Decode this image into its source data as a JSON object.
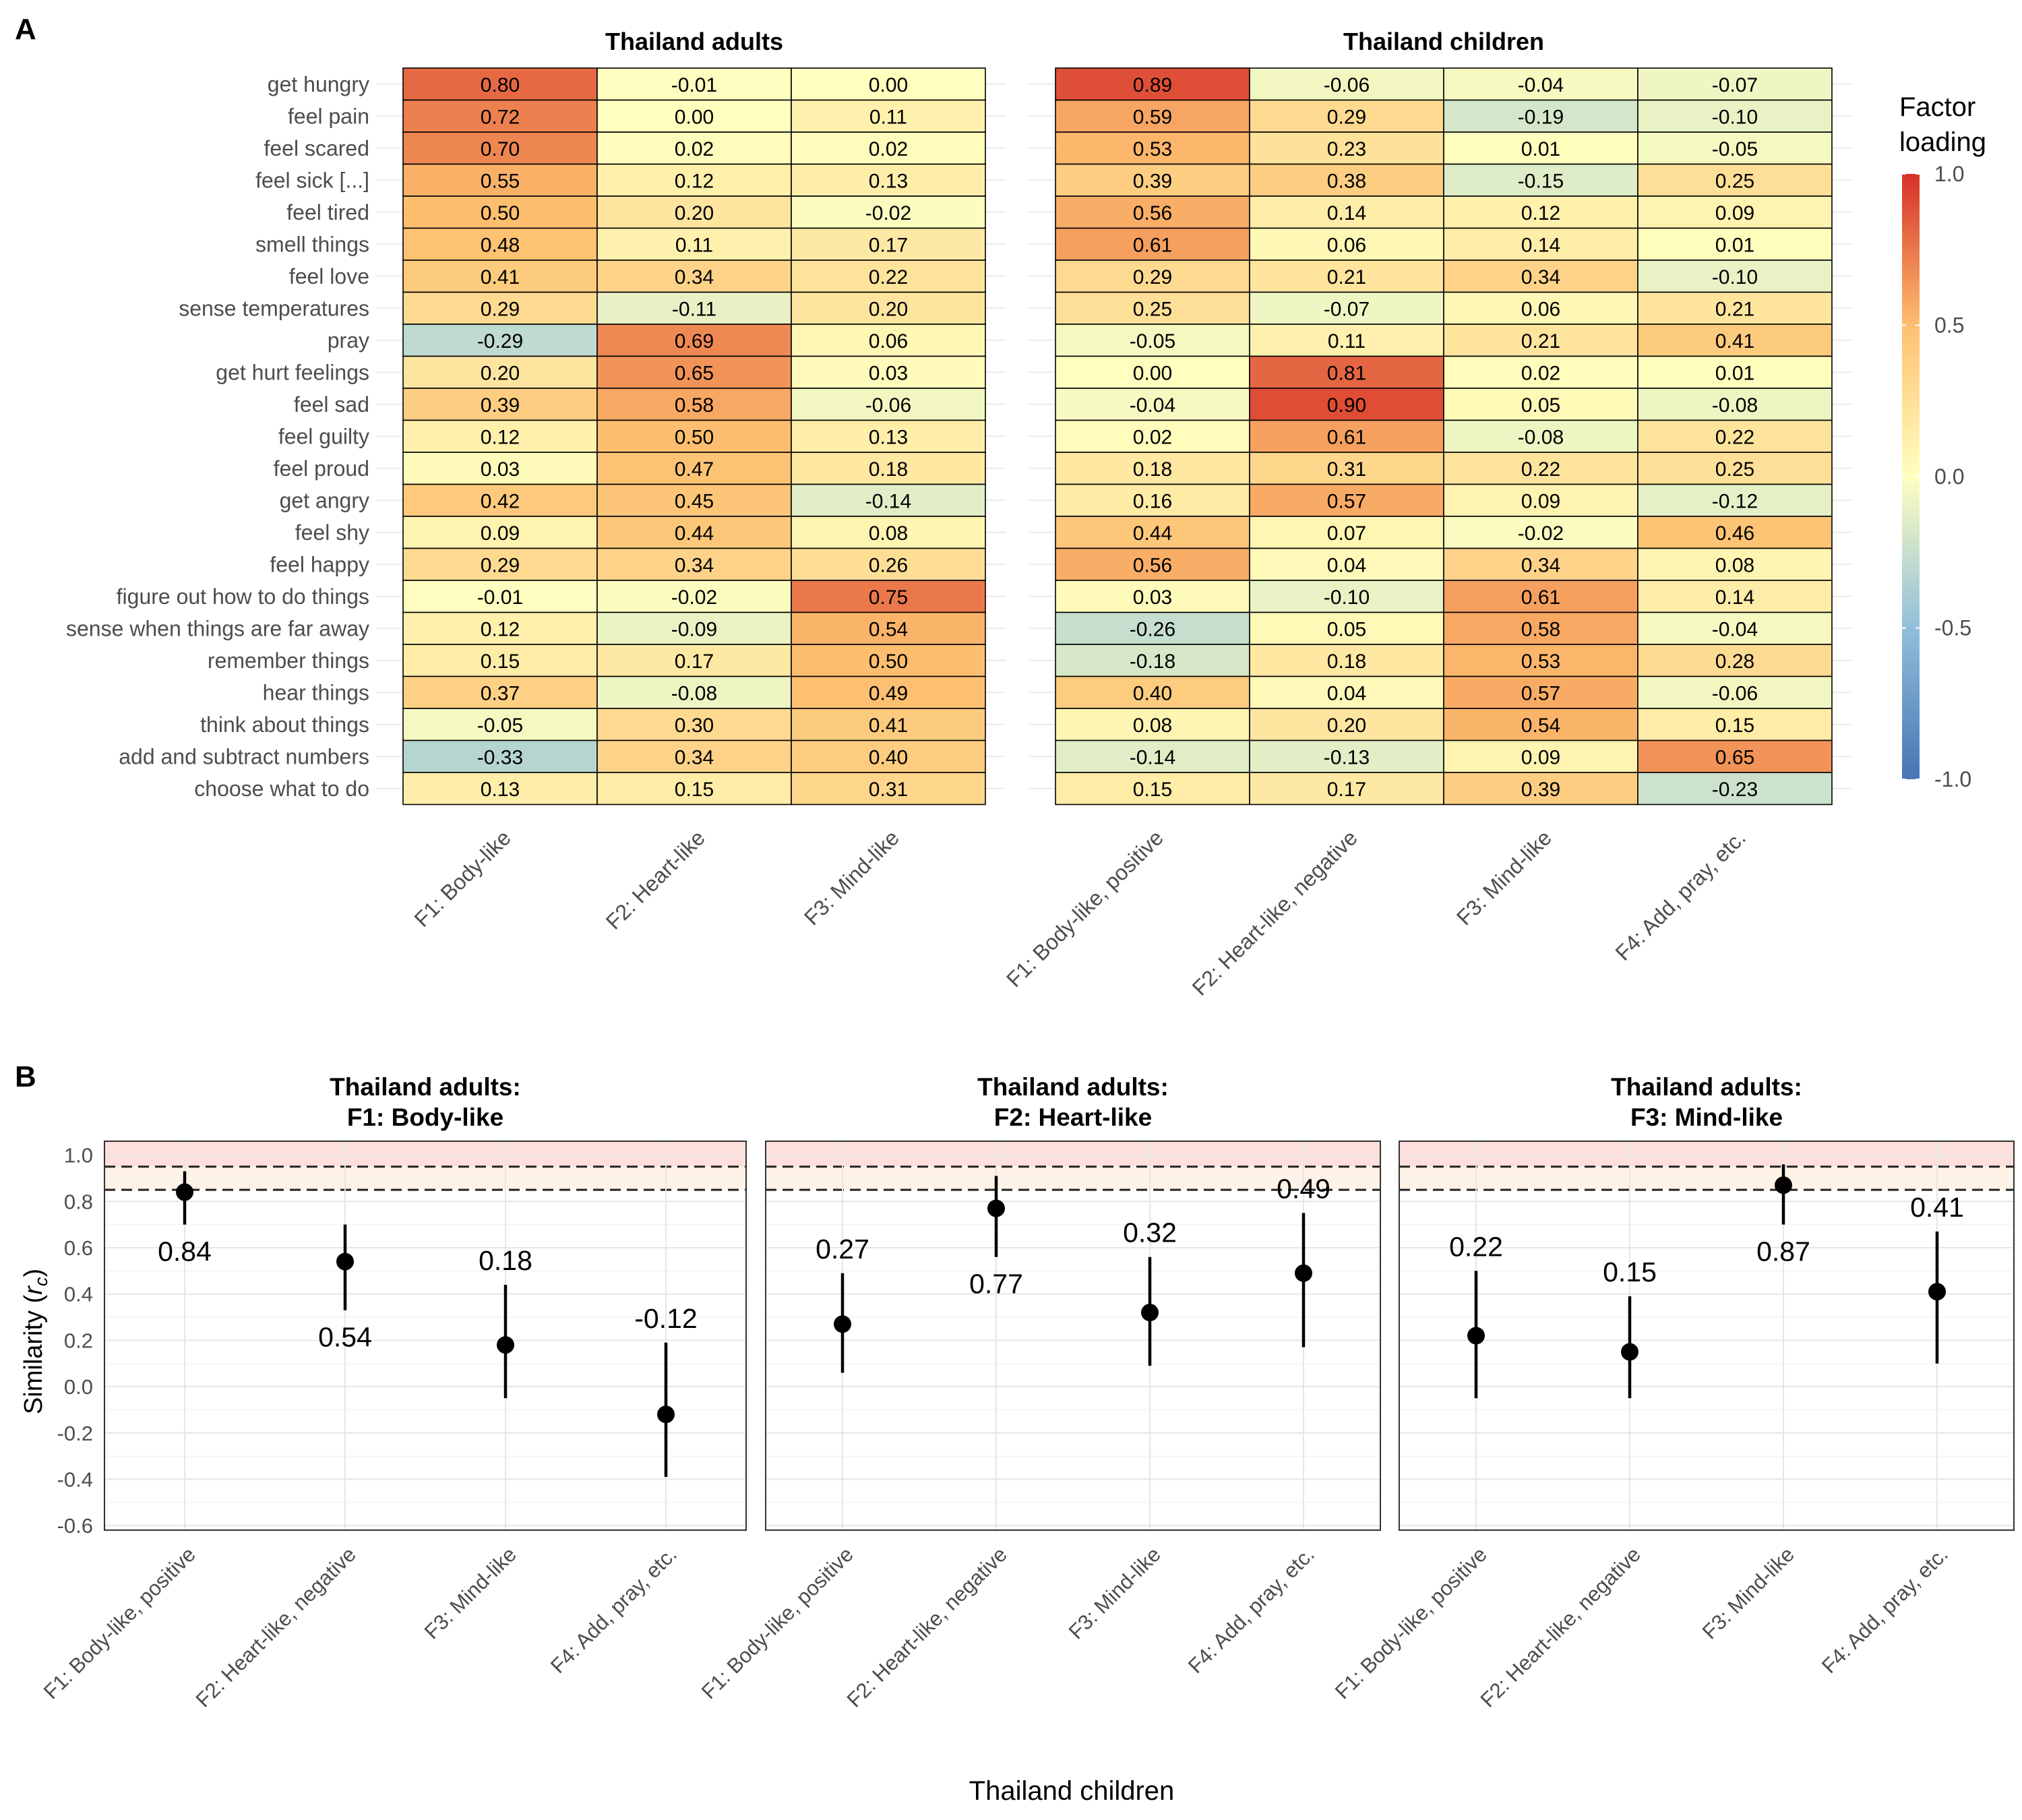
{
  "panel_a": {
    "letter": "A",
    "legend": {
      "title_line1": "Factor",
      "title_line2": "loading",
      "ticks": [
        "1.0",
        "0.5",
        "0.0",
        "-0.5",
        "-1.0"
      ],
      "tick_values": [
        1.0,
        0.5,
        0.0,
        -0.5,
        -1.0
      ],
      "colors": {
        "neg": "#4575b4",
        "mid": "#ffffbf",
        "pos": "#d73027"
      }
    }
  },
  "panel_b": {
    "letter": "B",
    "ylabel": "Similarity",
    "ylabel_symbol": "r",
    "ylabel_sub": "c",
    "xlabel": "Thailand children"
  },
  "chart_data": [
    {
      "type": "heatmap",
      "title": "Thailand adults",
      "x_categories": [
        "F1: Body-like",
        "F2: Heart-like",
        "F3: Mind-like"
      ],
      "y_categories": [
        "get hungry",
        "feel pain",
        "feel scared",
        "feel sick [...]",
        "feel tired",
        "smell things",
        "feel love",
        "sense temperatures",
        "pray",
        "get hurt feelings",
        "feel sad",
        "feel guilty",
        "feel proud",
        "get angry",
        "feel shy",
        "feel happy",
        "figure out how to do things",
        "sense when things are far away",
        "remember things",
        "hear things",
        "think about things",
        "add and subtract numbers",
        "choose what to do"
      ],
      "values": [
        [
          0.8,
          -0.01,
          0.0
        ],
        [
          0.72,
          0.0,
          0.11
        ],
        [
          0.7,
          0.02,
          0.02
        ],
        [
          0.55,
          0.12,
          0.13
        ],
        [
          0.5,
          0.2,
          -0.02
        ],
        [
          0.48,
          0.11,
          0.17
        ],
        [
          0.41,
          0.34,
          0.22
        ],
        [
          0.29,
          -0.11,
          0.2
        ],
        [
          -0.29,
          0.69,
          0.06
        ],
        [
          0.2,
          0.65,
          0.03
        ],
        [
          0.39,
          0.58,
          -0.06
        ],
        [
          0.12,
          0.5,
          0.13
        ],
        [
          0.03,
          0.47,
          0.18
        ],
        [
          0.42,
          0.45,
          -0.14
        ],
        [
          0.09,
          0.44,
          0.08
        ],
        [
          0.29,
          0.34,
          0.26
        ],
        [
          -0.01,
          -0.02,
          0.75
        ],
        [
          0.12,
          -0.09,
          0.54
        ],
        [
          0.15,
          0.17,
          0.5
        ],
        [
          0.37,
          -0.08,
          0.49
        ],
        [
          -0.05,
          0.3,
          0.41
        ],
        [
          -0.33,
          0.34,
          0.4
        ],
        [
          0.13,
          0.15,
          0.31
        ]
      ],
      "labels": [
        [
          "0.80",
          "-0.01",
          "0.00"
        ],
        [
          "0.72",
          "0.00",
          "0.11"
        ],
        [
          "0.70",
          "0.02",
          "0.02"
        ],
        [
          "0.55",
          "0.12",
          "0.13"
        ],
        [
          "0.50",
          "0.20",
          "-0.02"
        ],
        [
          "0.48",
          "0.11",
          "0.17"
        ],
        [
          "0.41",
          "0.34",
          "0.22"
        ],
        [
          "0.29",
          "-0.11",
          "0.20"
        ],
        [
          "-0.29",
          "0.69",
          "0.06"
        ],
        [
          "0.20",
          "0.65",
          "0.03"
        ],
        [
          "0.39",
          "0.58",
          "-0.06"
        ],
        [
          "0.12",
          "0.50",
          "0.13"
        ],
        [
          "0.03",
          "0.47",
          "0.18"
        ],
        [
          "0.42",
          "0.45",
          "-0.14"
        ],
        [
          "0.09",
          "0.44",
          "0.08"
        ],
        [
          "0.29",
          "0.34",
          "0.26"
        ],
        [
          "-0.01",
          "-0.02",
          "0.75"
        ],
        [
          "0.12",
          "-0.09",
          "0.54"
        ],
        [
          "0.15",
          "0.17",
          "0.50"
        ],
        [
          "0.37",
          "-0.08",
          "0.49"
        ],
        [
          "-0.05",
          "0.30",
          "0.41"
        ],
        [
          "-0.33",
          "0.34",
          "0.40"
        ],
        [
          "0.13",
          "0.15",
          "0.31"
        ]
      ],
      "color_range": [
        -1.0,
        1.0
      ]
    },
    {
      "type": "heatmap",
      "title": "Thailand children",
      "x_categories": [
        "F1: Body-like, positive",
        "F2: Heart-like, negative",
        "F3: Mind-like",
        "F4: Add, pray, etc."
      ],
      "values": [
        [
          0.89,
          -0.06,
          -0.04,
          -0.07
        ],
        [
          0.59,
          0.29,
          -0.19,
          -0.1
        ],
        [
          0.53,
          0.23,
          0.01,
          -0.05
        ],
        [
          0.39,
          0.38,
          -0.15,
          0.25
        ],
        [
          0.56,
          0.14,
          0.12,
          0.09
        ],
        [
          0.61,
          0.06,
          0.14,
          0.01
        ],
        [
          0.29,
          0.21,
          0.34,
          -0.1
        ],
        [
          0.25,
          -0.07,
          0.06,
          0.21
        ],
        [
          -0.05,
          0.11,
          0.21,
          0.41
        ],
        [
          0.0,
          0.81,
          0.02,
          0.01
        ],
        [
          -0.04,
          0.9,
          0.05,
          -0.08
        ],
        [
          0.02,
          0.61,
          -0.08,
          0.22
        ],
        [
          0.18,
          0.31,
          0.22,
          0.25
        ],
        [
          0.16,
          0.57,
          0.09,
          -0.12
        ],
        [
          0.44,
          0.07,
          -0.02,
          0.46
        ],
        [
          0.56,
          0.04,
          0.34,
          0.08
        ],
        [
          0.03,
          -0.1,
          0.61,
          0.14
        ],
        [
          -0.26,
          0.05,
          0.58,
          -0.04
        ],
        [
          -0.18,
          0.18,
          0.53,
          0.28
        ],
        [
          0.4,
          0.04,
          0.57,
          -0.06
        ],
        [
          0.08,
          0.2,
          0.54,
          0.15
        ],
        [
          -0.14,
          -0.13,
          0.09,
          0.65
        ],
        [
          0.15,
          0.17,
          0.39,
          -0.23
        ]
      ],
      "labels": [
        [
          "0.89",
          "-0.06",
          "-0.04",
          "-0.07"
        ],
        [
          "0.59",
          "0.29",
          "-0.19",
          "-0.10"
        ],
        [
          "0.53",
          "0.23",
          "0.01",
          "-0.05"
        ],
        [
          "0.39",
          "0.38",
          "-0.15",
          "0.25"
        ],
        [
          "0.56",
          "0.14",
          "0.12",
          "0.09"
        ],
        [
          "0.61",
          "0.06",
          "0.14",
          "0.01"
        ],
        [
          "0.29",
          "0.21",
          "0.34",
          "-0.10"
        ],
        [
          "0.25",
          "-0.07",
          "0.06",
          "0.21"
        ],
        [
          "-0.05",
          "0.11",
          "0.21",
          "0.41"
        ],
        [
          "0.00",
          "0.81",
          "0.02",
          "0.01"
        ],
        [
          "-0.04",
          "0.90",
          "0.05",
          "-0.08"
        ],
        [
          "0.02",
          "0.61",
          "-0.08",
          "0.22"
        ],
        [
          "0.18",
          "0.31",
          "0.22",
          "0.25"
        ],
        [
          "0.16",
          "0.57",
          "0.09",
          "-0.12"
        ],
        [
          "0.44",
          "0.07",
          "-0.02",
          "0.46"
        ],
        [
          "0.56",
          "0.04",
          "0.34",
          "0.08"
        ],
        [
          "0.03",
          "-0.10",
          "0.61",
          "0.14"
        ],
        [
          "-0.26",
          "0.05",
          "0.58",
          "-0.04"
        ],
        [
          "-0.18",
          "0.18",
          "0.53",
          "0.28"
        ],
        [
          "0.40",
          "0.04",
          "0.57",
          "-0.06"
        ],
        [
          "0.08",
          "0.20",
          "0.54",
          "0.15"
        ],
        [
          "-0.14",
          "-0.13",
          "0.09",
          "0.65"
        ],
        [
          "0.15",
          "0.17",
          "0.39",
          "-0.23"
        ]
      ],
      "color_range": [
        -1.0,
        1.0
      ]
    },
    {
      "type": "scatter",
      "title_line1": "Thailand adults:",
      "title_line2": "F1: Body-like",
      "categories": [
        "F1: Body-like, positive",
        "F2: Heart-like, negative",
        "F3: Mind-like",
        "F4: Add, pray, etc."
      ],
      "values": [
        0.84,
        0.54,
        0.18,
        -0.12
      ],
      "lower": [
        0.7,
        0.33,
        -0.05,
        -0.39
      ],
      "upper": [
        0.93,
        0.7,
        0.44,
        0.19
      ],
      "labels": [
        "0.84",
        "0.54",
        "0.18",
        "-0.12"
      ],
      "label_pos": [
        "below",
        "below",
        "above",
        "above"
      ],
      "ylim": [
        -0.62,
        1.06
      ],
      "yticks": [
        1.0,
        0.8,
        0.6,
        0.4,
        0.2,
        0.0,
        -0.2,
        -0.4,
        -0.6
      ],
      "ytick_labels": [
        "1.0",
        "0.8",
        "0.6",
        "0.4",
        "0.2",
        "0.0",
        "-0.2",
        "-0.4",
        "-0.6"
      ],
      "reference_lines": [
        0.95,
        0.85
      ]
    },
    {
      "type": "scatter",
      "title_line1": "Thailand adults:",
      "title_line2": "F2: Heart-like",
      "categories": [
        "F1: Body-like, positive",
        "F2: Heart-like, negative",
        "F3: Mind-like",
        "F4: Add, pray, etc."
      ],
      "values": [
        0.27,
        0.77,
        0.32,
        0.49
      ],
      "lower": [
        0.06,
        0.56,
        0.09,
        0.17
      ],
      "upper": [
        0.49,
        0.91,
        0.56,
        0.75
      ],
      "labels": [
        "0.27",
        "0.77",
        "0.32",
        "0.49"
      ],
      "label_pos": [
        "above",
        "below",
        "above",
        "above"
      ],
      "ylim": [
        -0.62,
        1.06
      ],
      "reference_lines": [
        0.95,
        0.85
      ]
    },
    {
      "type": "scatter",
      "title_line1": "Thailand adults:",
      "title_line2": "F3: Mind-like",
      "categories": [
        "F1: Body-like, positive",
        "F2: Heart-like, negative",
        "F3: Mind-like",
        "F4: Add, pray, etc."
      ],
      "values": [
        0.22,
        0.15,
        0.87,
        0.41
      ],
      "lower": [
        -0.05,
        -0.05,
        0.7,
        0.1
      ],
      "upper": [
        0.5,
        0.39,
        0.96,
        0.67
      ],
      "labels": [
        "0.22",
        "0.15",
        "0.87",
        "0.41"
      ],
      "label_pos": [
        "above",
        "above",
        "below",
        "above"
      ],
      "ylim": [
        -0.62,
        1.06
      ],
      "reference_lines": [
        0.95,
        0.85
      ]
    }
  ]
}
